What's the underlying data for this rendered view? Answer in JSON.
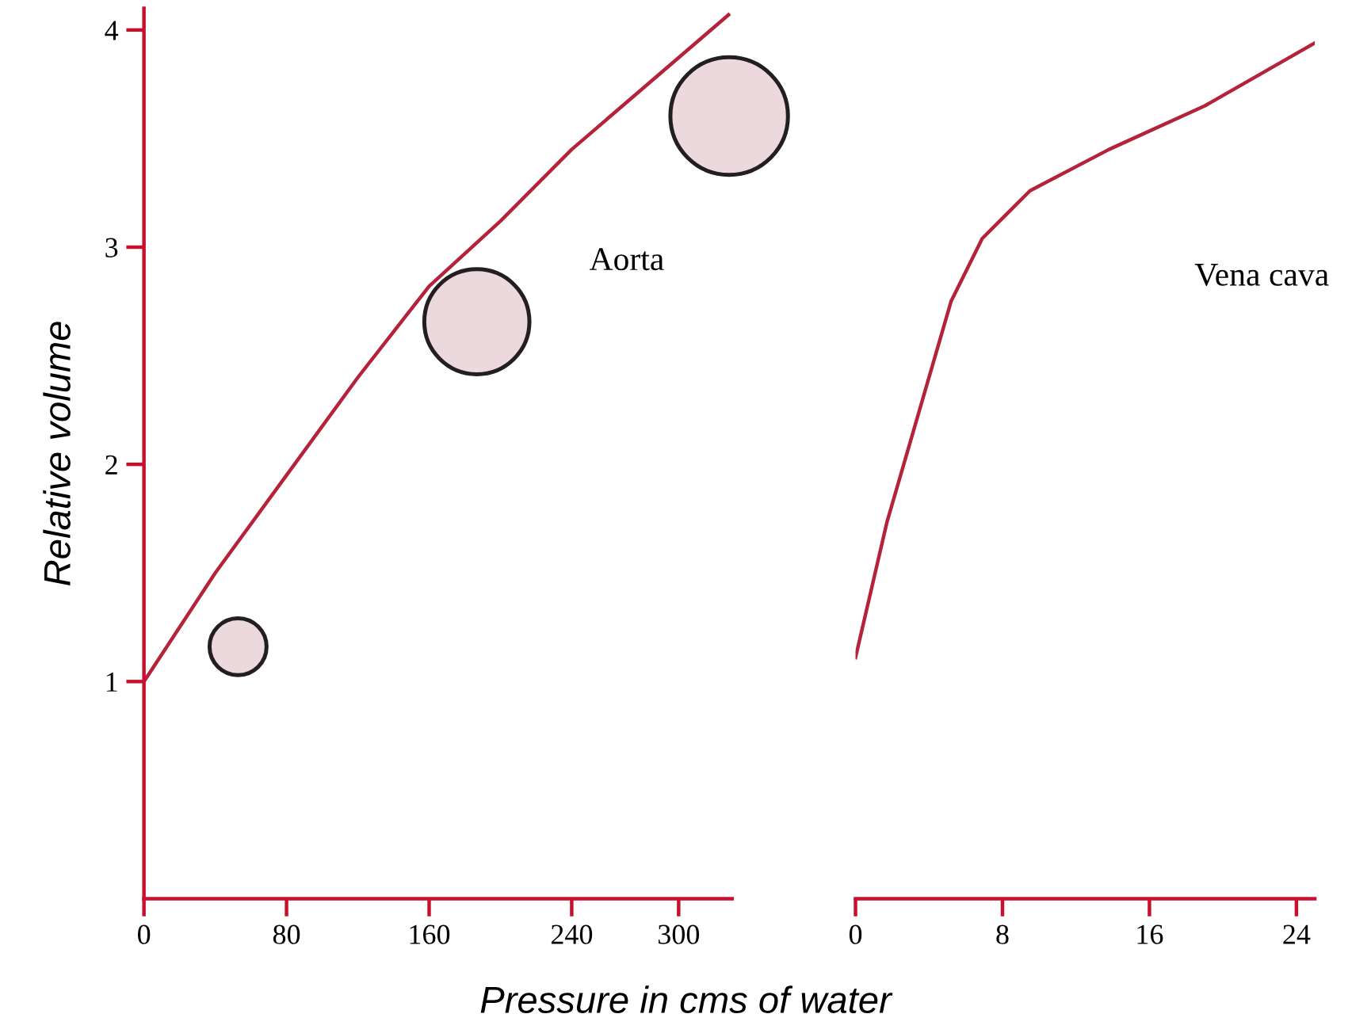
{
  "chart_data": [
    {
      "type": "line",
      "ylabel": "Relative volume",
      "xlabel": "Pressure in cms of water",
      "xlim": [
        0,
        330
      ],
      "ylim": [
        0,
        4.1
      ],
      "xticks": [
        0,
        80,
        160,
        240,
        300
      ],
      "yticks": [
        1,
        2,
        3,
        4
      ],
      "series": [
        {
          "name": "Aorta",
          "color": "#b5233a",
          "x": [
            0,
            40,
            80,
            120,
            160,
            200,
            240,
            328
          ],
          "values": [
            1,
            1.5,
            1.95,
            2.4,
            2.82,
            3.12,
            3.45,
            4.07
          ]
        }
      ],
      "marker": "none",
      "line_style": "solid",
      "grid": false,
      "legend": false
    },
    {
      "type": "line",
      "xlim": [
        0,
        25
      ],
      "ylim": [
        0,
        4
      ],
      "yticks": [
        1,
        2,
        3,
        4
      ],
      "xticks": [
        0,
        8,
        16,
        24
      ],
      "tick_labels": "x",
      "series": [
        {
          "name": "Vena cava",
          "color": "#b5233a",
          "x": [
            0,
            1.7,
            3.45,
            5.2,
            6.9,
            9.5,
            13.8,
            19,
            25
          ],
          "values": [
            1.11,
            1.73,
            2.24,
            2.75,
            3.04,
            3.26,
            3.45,
            3.65,
            3.94
          ]
        }
      ],
      "marker": "none",
      "line_style": "solid",
      "grid": false,
      "legend": false
    }
  ]
}
